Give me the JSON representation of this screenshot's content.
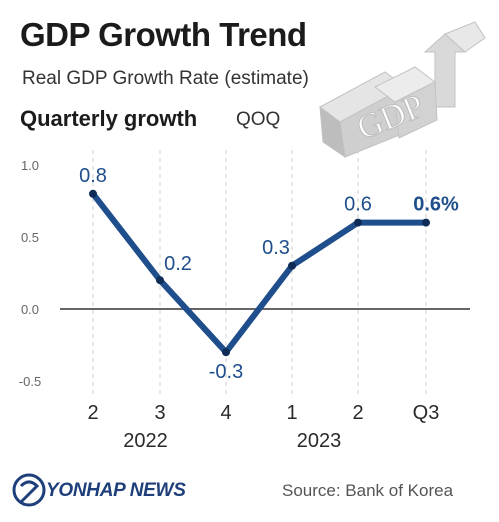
{
  "header": {
    "title": "GDP Growth Trend",
    "subtitle": "Real GDP Growth Rate (estimate)",
    "section_label": "Quarterly growth",
    "section_unit": "QOQ"
  },
  "decoration": {
    "icon": "gdp-3d-letters-icon",
    "text": "GDP"
  },
  "chart_data": {
    "type": "line",
    "categories": [
      "2",
      "3",
      "4",
      "1",
      "2",
      "Q3"
    ],
    "year_labels": [
      {
        "label": "2022",
        "span": [
          "2",
          "4"
        ]
      },
      {
        "label": "2023",
        "span": [
          "1",
          "Q3"
        ]
      }
    ],
    "series": [
      {
        "values": [
          0.8,
          0.2,
          -0.3,
          0.3,
          0.6,
          0.6
        ]
      }
    ],
    "data_labels": [
      "0.8",
      "0.2",
      "-0.3",
      "0.3",
      "0.6",
      "0.6%"
    ],
    "y_ticks": [
      "1.0",
      "0.5",
      "0.0",
      "-0.5"
    ],
    "ylim": [
      -0.5,
      1.0
    ],
    "grid": "dashed vertical at each quarter",
    "colors": {
      "line": "#1f4e8c",
      "last_label": "#1f4e8c",
      "axis": "#333333"
    }
  },
  "footer": {
    "brand": "YONHAP NEWS",
    "source": "Source: Bank of Korea"
  }
}
